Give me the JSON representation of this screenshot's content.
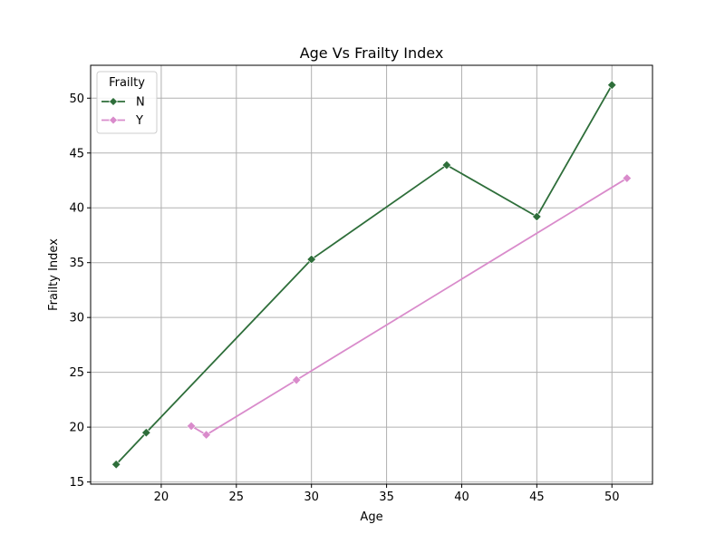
{
  "chart_data": {
    "type": "line",
    "title": "Age Vs Frailty Index",
    "xlabel": "Age",
    "ylabel": "Frailty Index",
    "xlim": [
      15.3,
      52.7
    ],
    "ylim": [
      14.8,
      53.0
    ],
    "xticks": [
      20,
      25,
      30,
      35,
      40,
      45,
      50
    ],
    "yticks": [
      15,
      20,
      25,
      30,
      35,
      40,
      45,
      50
    ],
    "grid": true,
    "legend": {
      "title": "Frailty",
      "placement": "top-left"
    },
    "series": [
      {
        "name": "N",
        "color": "#2e6e3a",
        "marker": "diamond",
        "x": [
          17,
          19,
          30,
          39,
          45,
          50
        ],
        "y": [
          16.6,
          19.5,
          35.3,
          43.9,
          39.2,
          51.2
        ]
      },
      {
        "name": "Y",
        "color": "#d98bcb",
        "marker": "diamond",
        "x": [
          22,
          23,
          29,
          51
        ],
        "y": [
          20.1,
          19.3,
          24.3,
          42.7
        ]
      }
    ]
  }
}
